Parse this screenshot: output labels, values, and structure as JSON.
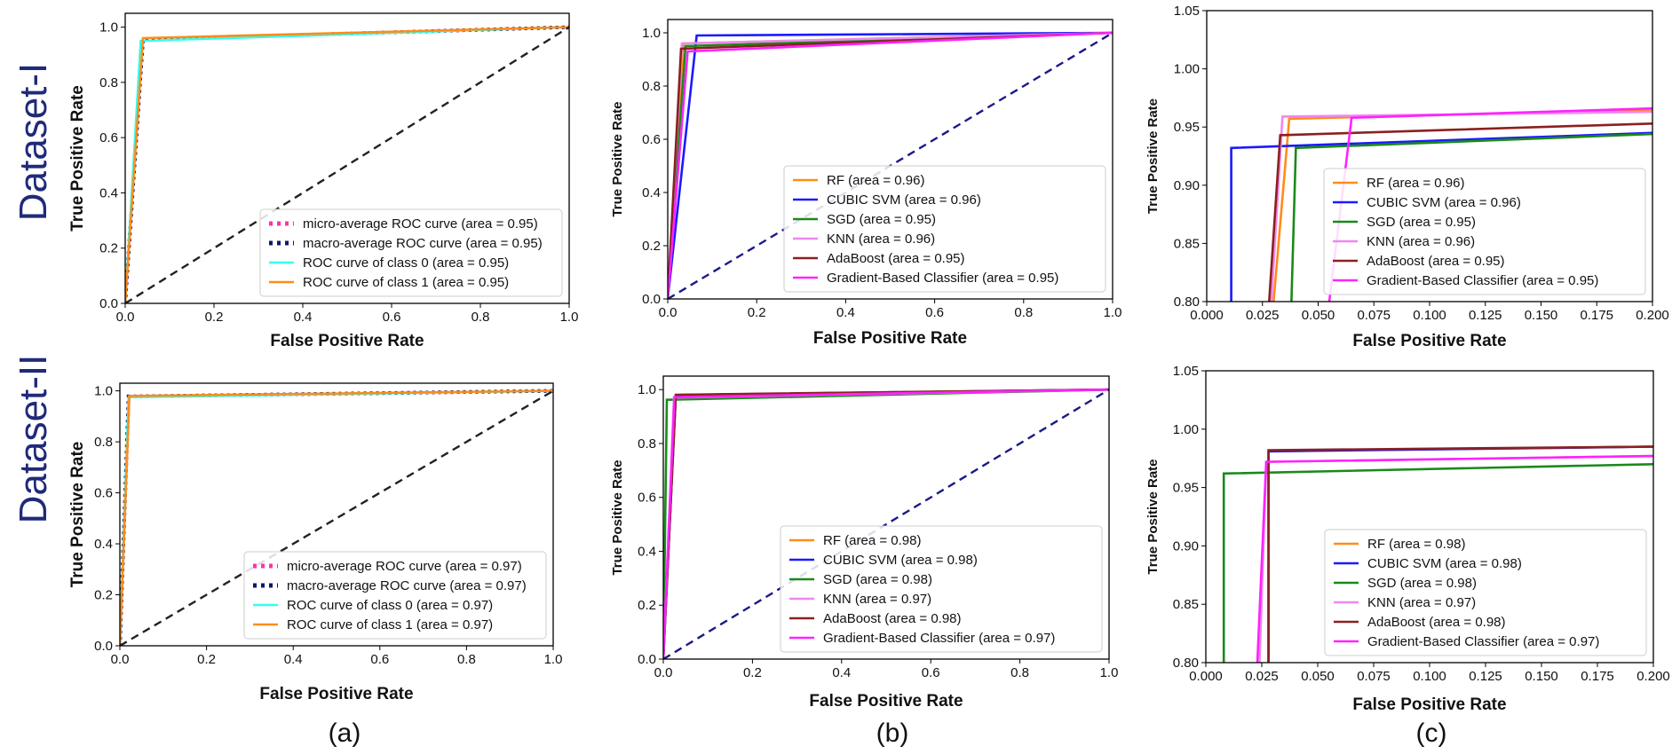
{
  "row_labels": [
    "Dataset-I",
    "Dataset-II"
  ],
  "panel_labels": [
    "(a)",
    "(b)",
    "(c)"
  ],
  "colors": {
    "micro": "#ff33aa",
    "macro": "#0b1a66",
    "class0": "#33ffee",
    "class1": "#ff8c1a",
    "RF": "#ff8c1a",
    "CUBIC_SVM": "#1a1aff",
    "SGD": "#1a8a1a",
    "KNN": "#ee88ee",
    "AdaBoost": "#8b2020",
    "GBC": "#ff22ff",
    "chance_a": "#222222",
    "chance_b": "#1a1a88"
  },
  "chart_data": [
    {
      "id": "a1",
      "type": "line",
      "xlabel": "False Positive Rate",
      "ylabel": "True Positive Rate",
      "xlim": [
        0,
        1
      ],
      "ylim": [
        0,
        1.05
      ],
      "xticks": [
        "0.0",
        "0.2",
        "0.4",
        "0.6",
        "0.8",
        "1.0"
      ],
      "yticks": [
        "0.0",
        "0.2",
        "0.4",
        "0.6",
        "0.8",
        "1.0"
      ],
      "legend_position": "lower right",
      "series": [
        {
          "name": "micro-average ROC curve (area = 0.95)",
          "color_key": "micro",
          "style": "dotted",
          "x": [
            0,
            0.04,
            1
          ],
          "y": [
            0,
            0.955,
            1.0
          ]
        },
        {
          "name": "macro-average ROC curve (area = 0.95)",
          "color_key": "macro",
          "style": "dotted",
          "x": [
            0,
            0.04,
            1
          ],
          "y": [
            0,
            0.955,
            1.0
          ]
        },
        {
          "name": "ROC curve of class 0 (area = 0.95)",
          "color_key": "class0",
          "style": "solid",
          "x": [
            0,
            0.035,
            1
          ],
          "y": [
            0,
            0.95,
            1.0
          ]
        },
        {
          "name": "ROC curve of class 1 (area = 0.95)",
          "color_key": "class1",
          "style": "solid",
          "x": [
            0,
            0.04,
            1
          ],
          "y": [
            0,
            0.96,
            1.0
          ]
        },
        {
          "name": "",
          "color_key": "chance_a",
          "style": "dashed",
          "x": [
            0,
            1
          ],
          "y": [
            0,
            1
          ]
        }
      ]
    },
    {
      "id": "b1",
      "type": "line",
      "xlabel": "False Positive Rate",
      "ylabel": "True Positive Rate",
      "xlim": [
        0,
        1
      ],
      "ylim": [
        0,
        1.05
      ],
      "xticks": [
        "0.0",
        "0.2",
        "0.4",
        "0.6",
        "0.8",
        "1.0"
      ],
      "yticks": [
        "0.0",
        "0.2",
        "0.4",
        "0.6",
        "0.8",
        "1.0"
      ],
      "legend_position": "lower right",
      "series": [
        {
          "name": "RF (area = 0.96)",
          "color_key": "RF",
          "style": "solid",
          "x": [
            0,
            0.035,
            1
          ],
          "y": [
            0,
            0.96,
            1.0
          ]
        },
        {
          "name": "CUBIC SVM (area = 0.96)",
          "color_key": "CUBIC_SVM",
          "style": "solid",
          "x": [
            0,
            0.065,
            1
          ],
          "y": [
            0,
            0.99,
            1.0
          ]
        },
        {
          "name": "SGD (area = 0.95)",
          "color_key": "SGD",
          "style": "solid",
          "x": [
            0,
            0.04,
            1
          ],
          "y": [
            0,
            0.95,
            1.0
          ]
        },
        {
          "name": "KNN (area = 0.96)",
          "color_key": "KNN",
          "style": "solid",
          "x": [
            0,
            0.032,
            1
          ],
          "y": [
            0,
            0.96,
            1.0
          ]
        },
        {
          "name": "AdaBoost (area = 0.95)",
          "color_key": "AdaBoost",
          "style": "solid",
          "x": [
            0,
            0.03,
            1
          ],
          "y": [
            0,
            0.94,
            1.0
          ]
        },
        {
          "name": "Gradient-Based Classifier  (area = 0.95)",
          "color_key": "GBC",
          "style": "solid",
          "x": [
            0,
            0.045,
            1
          ],
          "y": [
            0,
            0.93,
            1.0
          ]
        },
        {
          "name": "",
          "color_key": "chance_b",
          "style": "dashed",
          "x": [
            0,
            1
          ],
          "y": [
            0,
            1
          ]
        }
      ]
    },
    {
      "id": "c1",
      "type": "line",
      "xlabel": "False Positive Rate",
      "ylabel": "True Positive Rate",
      "xlim": [
        0,
        0.2
      ],
      "ylim": [
        0.8,
        1.05
      ],
      "xticks": [
        "0.000",
        "0.025",
        "0.050",
        "0.075",
        "0.100",
        "0.125",
        "0.150",
        "0.175",
        "0.200"
      ],
      "yticks": [
        "0.80",
        "0.85",
        "0.90",
        "0.95",
        "1.00",
        "1.05"
      ],
      "legend_position": "lower right",
      "series": [
        {
          "name": "RF (area = 0.96)",
          "color_key": "RF",
          "style": "solid",
          "x": [
            0.03,
            0.037,
            0.2
          ],
          "y": [
            0.8,
            0.957,
            0.965
          ]
        },
        {
          "name": "CUBIC SVM (area = 0.96)",
          "color_key": "CUBIC_SVM",
          "style": "solid",
          "x": [
            0.011,
            0.011,
            0.2
          ],
          "y": [
            0.8,
            0.932,
            0.945
          ]
        },
        {
          "name": "SGD (area = 0.95)",
          "color_key": "SGD",
          "style": "solid",
          "x": [
            0.038,
            0.04,
            0.2
          ],
          "y": [
            0.8,
            0.932,
            0.944
          ]
        },
        {
          "name": "KNN (area = 0.96)",
          "color_key": "KNN",
          "style": "solid",
          "x": [
            0.029,
            0.034,
            0.2
          ],
          "y": [
            0.8,
            0.959,
            0.963
          ]
        },
        {
          "name": "AdaBoost (area = 0.95)",
          "color_key": "AdaBoost",
          "style": "solid",
          "x": [
            0.028,
            0.033,
            0.2
          ],
          "y": [
            0.8,
            0.943,
            0.953
          ]
        },
        {
          "name": "Gradient-Based Classifier  (area = 0.95)",
          "color_key": "GBC",
          "style": "solid",
          "x": [
            0.055,
            0.065,
            0.2
          ],
          "y": [
            0.8,
            0.958,
            0.966
          ]
        }
      ]
    },
    {
      "id": "a2",
      "type": "line",
      "xlabel": "False Positive Rate",
      "ylabel": "True Positive Rate",
      "xlim": [
        0,
        1
      ],
      "ylim": [
        0,
        1.03
      ],
      "xticks": [
        "0.0",
        "0.2",
        "0.4",
        "0.6",
        "0.8",
        "1.0"
      ],
      "yticks": [
        "0.0",
        "0.2",
        "0.4",
        "0.6",
        "0.8",
        "1.0"
      ],
      "legend_position": "lower right",
      "series": [
        {
          "name": "micro-average ROC curve (area = 0.97)",
          "color_key": "micro",
          "style": "dotted",
          "x": [
            0,
            0.02,
            1
          ],
          "y": [
            0,
            0.978,
            1.0
          ]
        },
        {
          "name": "macro-average ROC curve (area = 0.97)",
          "color_key": "macro",
          "style": "dotted",
          "x": [
            0,
            0.02,
            1
          ],
          "y": [
            0,
            0.978,
            1.0
          ]
        },
        {
          "name": "ROC curve of class 0 (area = 0.97)",
          "color_key": "class0",
          "style": "solid",
          "x": [
            0,
            0.02,
            1
          ],
          "y": [
            0,
            0.975,
            1.0
          ]
        },
        {
          "name": "ROC curve of class 1 (area = 0.97)",
          "color_key": "class1",
          "style": "solid",
          "x": [
            0,
            0.022,
            1
          ],
          "y": [
            0,
            0.98,
            1.0
          ]
        },
        {
          "name": "",
          "color_key": "chance_a",
          "style": "dashed",
          "x": [
            0,
            1
          ],
          "y": [
            0,
            1
          ]
        }
      ]
    },
    {
      "id": "b2",
      "type": "line",
      "xlabel": "False Positive Rate",
      "ylabel": "True Positive Rate",
      "xlim": [
        0,
        1
      ],
      "ylim": [
        0,
        1.05
      ],
      "xticks": [
        "0.0",
        "0.2",
        "0.4",
        "0.6",
        "0.8",
        "1.0"
      ],
      "yticks": [
        "0.0",
        "0.2",
        "0.4",
        "0.6",
        "0.8",
        "1.0"
      ],
      "legend_position": "lower right",
      "series": [
        {
          "name": "RF (area = 0.98)",
          "color_key": "RF",
          "style": "solid",
          "x": [
            0,
            0.028,
            1
          ],
          "y": [
            0,
            0.98,
            1.0
          ]
        },
        {
          "name": "CUBIC SVM (area = 0.98)",
          "color_key": "CUBIC_SVM",
          "style": "solid",
          "x": [
            0,
            0.028,
            1
          ],
          "y": [
            0,
            0.98,
            1.0
          ]
        },
        {
          "name": "SGD (area = 0.98)",
          "color_key": "SGD",
          "style": "solid",
          "x": [
            0,
            0.008,
            1
          ],
          "y": [
            0,
            0.962,
            1.0
          ]
        },
        {
          "name": "KNN (area = 0.97)",
          "color_key": "KNN",
          "style": "solid",
          "x": [
            0,
            0.024,
            1
          ],
          "y": [
            0,
            0.97,
            1.0
          ]
        },
        {
          "name": "AdaBoost (area = 0.98)",
          "color_key": "AdaBoost",
          "style": "solid",
          "x": [
            0,
            0.028,
            1
          ],
          "y": [
            0,
            0.981,
            1.0
          ]
        },
        {
          "name": "Gradient-Based Classifier  (area = 0.97)",
          "color_key": "GBC",
          "style": "solid",
          "x": [
            0,
            0.025,
            1
          ],
          "y": [
            0,
            0.972,
            1.0
          ]
        },
        {
          "name": "",
          "color_key": "chance_b",
          "style": "dashed",
          "x": [
            0,
            1
          ],
          "y": [
            0,
            1
          ]
        }
      ]
    },
    {
      "id": "c2",
      "type": "line",
      "xlabel": "False Positive Rate",
      "ylabel": "True Positive Rate",
      "xlim": [
        0,
        0.2
      ],
      "ylim": [
        0.8,
        1.05
      ],
      "xticks": [
        "0.000",
        "0.025",
        "0.050",
        "0.075",
        "0.100",
        "0.125",
        "0.150",
        "0.175",
        "0.200"
      ],
      "yticks": [
        "0.80",
        "0.85",
        "0.90",
        "0.95",
        "1.00",
        "1.05"
      ],
      "legend_position": "lower right",
      "series": [
        {
          "name": "RF (area = 0.98)",
          "color_key": "RF",
          "style": "solid",
          "x": [
            0.028,
            0.028,
            0.2
          ],
          "y": [
            0.8,
            0.981,
            0.985
          ]
        },
        {
          "name": "CUBIC SVM (area = 0.98)",
          "color_key": "CUBIC_SVM",
          "style": "solid",
          "x": [
            0.028,
            0.028,
            0.2
          ],
          "y": [
            0.8,
            0.981,
            0.985
          ]
        },
        {
          "name": "SGD (area = 0.98)",
          "color_key": "SGD",
          "style": "solid",
          "x": [
            0.008,
            0.008,
            0.2
          ],
          "y": [
            0.8,
            0.962,
            0.97
          ]
        },
        {
          "name": "KNN (area = 0.97)",
          "color_key": "KNN",
          "style": "solid",
          "x": [
            0.024,
            0.027,
            0.2
          ],
          "y": [
            0.8,
            0.972,
            0.977
          ]
        },
        {
          "name": "AdaBoost (area = 0.98)",
          "color_key": "AdaBoost",
          "style": "solid",
          "x": [
            0.028,
            0.028,
            0.2
          ],
          "y": [
            0.8,
            0.982,
            0.985
          ]
        },
        {
          "name": "Gradient-Based Classifier  (area = 0.97)",
          "color_key": "GBC",
          "style": "solid",
          "x": [
            0.023,
            0.027,
            0.2
          ],
          "y": [
            0.8,
            0.972,
            0.977
          ]
        }
      ]
    }
  ]
}
